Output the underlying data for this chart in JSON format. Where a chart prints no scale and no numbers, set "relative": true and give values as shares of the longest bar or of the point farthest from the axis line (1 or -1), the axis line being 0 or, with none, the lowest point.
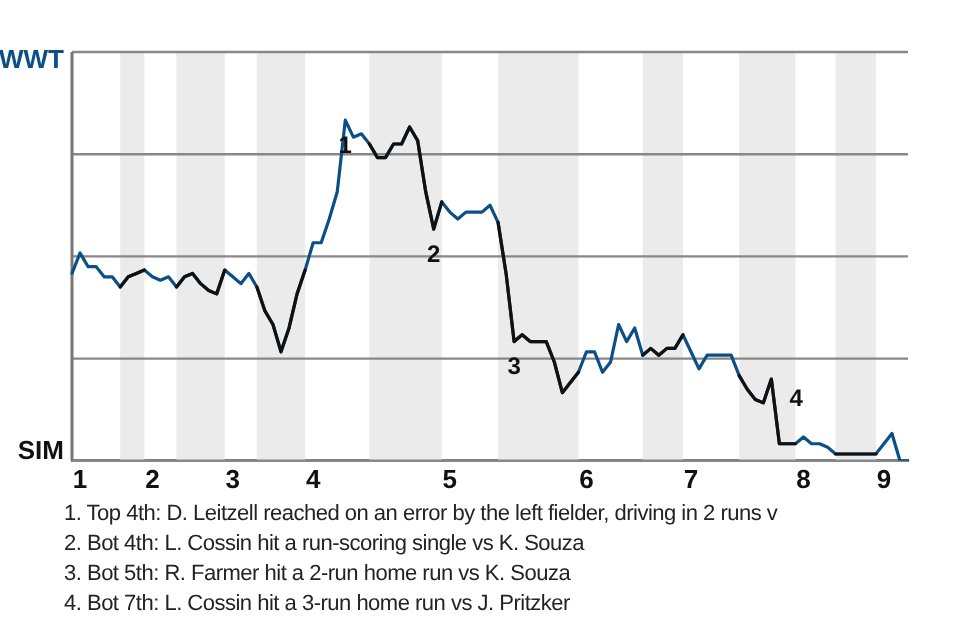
{
  "chart_data": {
    "type": "line",
    "relative": true,
    "categories": [
      null,
      "1",
      null,
      null,
      null,
      null,
      null,
      null,
      null,
      null,
      "2",
      null,
      null,
      null,
      null,
      null,
      null,
      null,
      null,
      null,
      "3",
      null,
      null,
      null,
      null,
      null,
      null,
      null,
      null,
      null,
      "4",
      null,
      null,
      null,
      null,
      null,
      null,
      null,
      null,
      null,
      null,
      null,
      null,
      null,
      null,
      null,
      null,
      "5",
      null,
      null,
      null,
      null,
      null,
      null,
      null,
      null,
      null,
      null,
      null,
      null,
      null,
      null,
      null,
      null,
      "6",
      null,
      null,
      null,
      null,
      null,
      null,
      null,
      null,
      null,
      null,
      null,
      null,
      "7",
      null,
      null,
      null,
      null,
      null,
      null,
      null,
      null,
      null,
      null,
      null,
      null,
      null,
      "8",
      null,
      null,
      null,
      null,
      null,
      null,
      null,
      null,
      null,
      "9",
      null,
      null,
      null
    ],
    "series": [
      {
        "color": "#0b4f86",
        "values": [
          0.55,
          0.61,
          0.57,
          0.57,
          0.54,
          0.54,
          0.51,
          0.54,
          0.55,
          0.56,
          0.54,
          0.53,
          0.54,
          0.51,
          0.54,
          0.55,
          0.52,
          0.5,
          0.49,
          0.56,
          0.54,
          0.52,
          0.55,
          0.51,
          0.44,
          0.4,
          0.32,
          0.39,
          0.49,
          0.56,
          0.64,
          0.64,
          0.71,
          0.79,
          1,
          0.95,
          0.96,
          0.93,
          0.89,
          0.89,
          0.93,
          0.93,
          0.98,
          0.94,
          0.79,
          0.68,
          0.76,
          0.73,
          0.71,
          0.73,
          0.73,
          0.73,
          0.75,
          0.7,
          0.55,
          0.35,
          0.37,
          0.35,
          0.35,
          0.35,
          0.29,
          0.2,
          0.23,
          0.26,
          0.32,
          0.32,
          0.26,
          0.29,
          0.4,
          0.35,
          0.39,
          0.31,
          0.33,
          0.31,
          0.33,
          0.33,
          0.37,
          0.32,
          0.27,
          0.31,
          0.31,
          0.31,
          0.31,
          0.25,
          0.21,
          0.18,
          0.17,
          0.24,
          0.05,
          0.05,
          0.05,
          0.07,
          0.05,
          0.05,
          0.04,
          0.02,
          0.02,
          0.02,
          0.02,
          0.02,
          0.02,
          0.05,
          0.08,
          0,
          0
        ]
      },
      {
        "color": "#111111",
        "values": [
          null,
          null,
          null,
          null,
          null,
          null,
          0.51,
          0.54,
          0.55,
          0.56,
          null,
          null,
          null,
          0.51,
          0.54,
          0.55,
          0.52,
          0.5,
          0.49,
          0.56,
          null,
          null,
          null,
          0.51,
          0.44,
          0.4,
          0.32,
          0.39,
          0.49,
          0.56,
          null,
          null,
          null,
          null,
          null,
          null,
          null,
          0.93,
          0.89,
          0.89,
          0.93,
          0.93,
          0.98,
          0.94,
          0.79,
          0.68,
          0.76,
          null,
          null,
          null,
          null,
          null,
          null,
          0.7,
          0.55,
          0.35,
          0.37,
          0.35,
          0.35,
          0.35,
          0.29,
          0.2,
          0.23,
          0.26,
          null,
          null,
          null,
          null,
          null,
          null,
          null,
          0.31,
          0.33,
          0.31,
          0.33,
          0.33,
          0.37,
          null,
          null,
          null,
          null,
          null,
          null,
          0.25,
          0.21,
          0.18,
          0.17,
          0.24,
          0.05,
          0.05,
          0.05,
          null,
          null,
          null,
          null,
          0.02,
          0.02,
          0.02,
          0.02,
          0.02,
          0.02,
          null,
          null,
          null,
          null
        ]
      }
    ],
    "grid": "y",
    "marker": "none",
    "legend": false,
    "annotations": [
      "WWT",
      "SIM",
      {
        "text": "1",
        "y": 1
      },
      {
        "text": "2",
        "y": 0.68
      },
      {
        "text": "3",
        "y": 0.35
      },
      {
        "text": "4",
        "y": 0.05
      },
      "1. Top 4th: D. Leitzell reached on an error by the left fielder, driving in 2 runs v",
      "2. Bot 4th: L. Cossin hit a run-scoring single vs K. Souza",
      "3. Bot 5th: R. Farmer hit a 2-run home run vs K. Souza",
      "4. Bot 7th: L. Cossin hit a 3-run home run vs J. Pritzker"
    ]
  }
}
